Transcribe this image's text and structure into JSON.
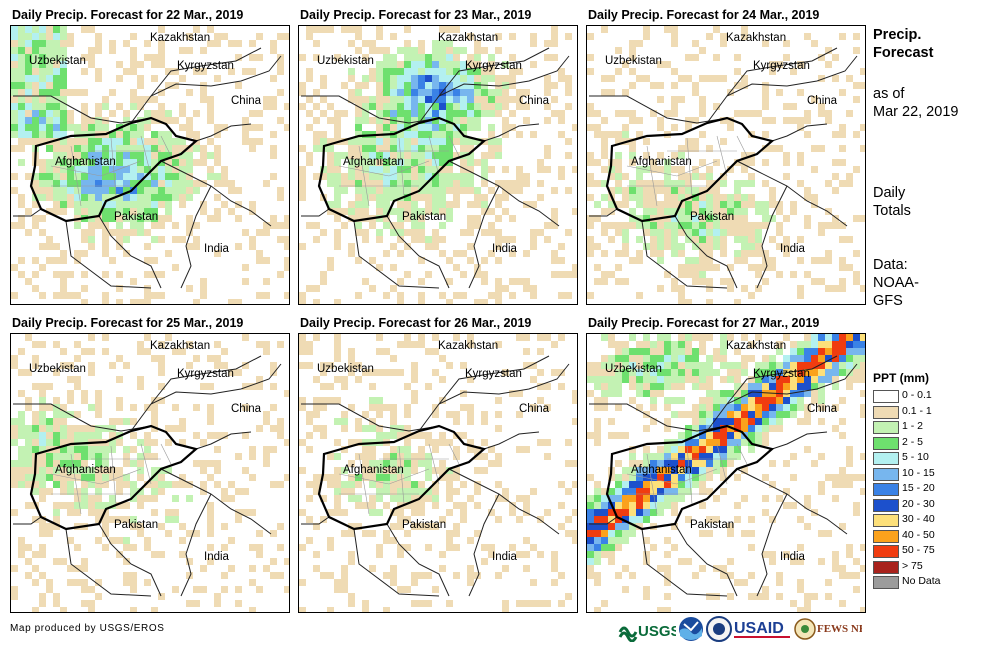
{
  "panels": [
    {
      "title": "Daily Precip. Forecast for 22 Mar., 2019",
      "intensity": 0.75,
      "bias": "east-west"
    },
    {
      "title": "Daily Precip. Forecast for 23 Mar., 2019",
      "intensity": 0.8,
      "bias": "north"
    },
    {
      "title": "Daily Precip. Forecast for 24 Mar., 2019",
      "intensity": 0.45,
      "bias": "south"
    },
    {
      "title": "Daily Precip. Forecast for 25 Mar., 2019",
      "intensity": 0.4,
      "bias": "west"
    },
    {
      "title": "Daily Precip. Forecast for 26 Mar., 2019",
      "intensity": 0.35,
      "bias": "center"
    },
    {
      "title": "Daily Precip. Forecast for 27 Mar., 2019",
      "intensity": 1.0,
      "bias": "band"
    }
  ],
  "country_labels": {
    "kazakhstan": "Kazakhstan",
    "uzbekistan": "Uzbekistan",
    "kyrgyzstan": "Kyrgyzstan",
    "china": "China",
    "afghanistan": "Afghanistan",
    "pakistan": "Pakistan",
    "india": "India"
  },
  "side": {
    "title_line1": "Precip.",
    "title_line2": "Forecast",
    "asof_line1": "as of",
    "asof_line2": "Mar 22, 2019",
    "daily_line1": "Daily",
    "daily_line2": "Totals",
    "data_line1": "Data:",
    "data_line2": "NOAA-",
    "data_line3": "GFS"
  },
  "legend": {
    "title": "PPT (mm)",
    "items": [
      {
        "label": "0 - 0.1",
        "color": "#ffffff"
      },
      {
        "label": "0.1 - 1",
        "color": "#efdbb4"
      },
      {
        "label": "1 - 2",
        "color": "#c3f2b3"
      },
      {
        "label": "2 - 5",
        "color": "#6ee06e"
      },
      {
        "label": "5 - 10",
        "color": "#b3f0f0"
      },
      {
        "label": "10 - 15",
        "color": "#77b6ee"
      },
      {
        "label": "15 - 20",
        "color": "#3a82e6"
      },
      {
        "label": "20 - 30",
        "color": "#1c50cc"
      },
      {
        "label": "30 - 40",
        "color": "#fde07a"
      },
      {
        "label": "40 - 50",
        "color": "#fba21c"
      },
      {
        "label": "50 - 75",
        "color": "#f03c10"
      },
      {
        "label": "> 75",
        "color": "#a8221c"
      },
      {
        "label": "No Data",
        "color": "#9c9c9c"
      }
    ]
  },
  "credit": "Map produced by USGS/EROS",
  "logos": {
    "usgs": "USGS",
    "noaa": "NOAA",
    "usaid": "USAID",
    "fewsnet": "FEWS NET"
  }
}
